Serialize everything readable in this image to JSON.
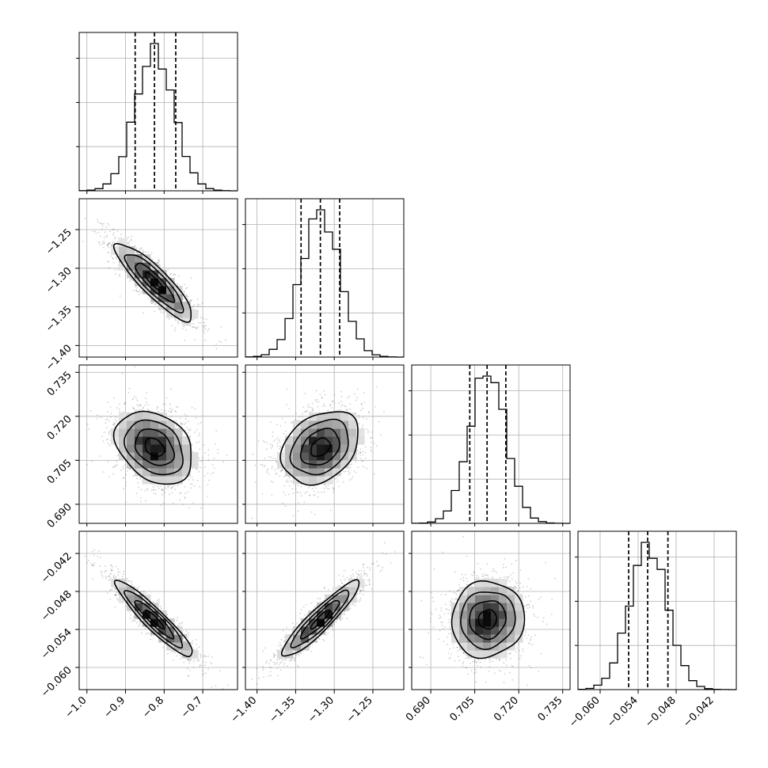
{
  "chart_data": {
    "type": "scatter",
    "figure": "corner",
    "grid": true,
    "parameters": [
      {
        "range": [
          -1.02,
          -0.61
        ],
        "ticks": [
          -1.0,
          -0.9,
          -0.8,
          -0.7
        ],
        "tick_labels": [
          "−1.0",
          "−0.9",
          "−0.8",
          "−0.7"
        ],
        "median": -0.825,
        "q16": -0.875,
        "q84": -0.77,
        "mean": -0.825,
        "sd": 0.05,
        "hist_ticks": [
          0.3,
          0.6,
          0.9
        ]
      },
      {
        "range": [
          -1.415,
          -1.21
        ],
        "ticks": [
          -1.4,
          -1.35,
          -1.3,
          -1.25
        ],
        "tick_labels": [
          "−1.40",
          "−1.35",
          "−1.30",
          "−1.25"
        ],
        "median": -1.318,
        "q16": -1.343,
        "q84": -1.293,
        "mean": -1.318,
        "sd": 0.025,
        "hist_ticks": [
          0.3,
          0.6,
          0.9
        ]
      },
      {
        "range": [
          0.6835,
          0.7375
        ],
        "ticks": [
          0.69,
          0.705,
          0.72,
          0.735
        ],
        "tick_labels": [
          "0.690",
          "0.705",
          "0.720",
          "0.735"
        ],
        "median": 0.7092,
        "q16": 0.7033,
        "q84": 0.7156,
        "mean": 0.7094,
        "sd": 0.0062,
        "hist_ticks": [
          0.3,
          0.6,
          0.9
        ]
      },
      {
        "range": [
          -0.0635,
          -0.0385
        ],
        "ticks": [
          -0.06,
          -0.054,
          -0.048,
          -0.042
        ],
        "tick_labels": [
          "−0.060",
          "−0.054",
          "−0.048",
          "−0.042"
        ],
        "median": -0.0525,
        "q16": -0.0555,
        "q84": -0.0493,
        "mean": -0.0524,
        "sd": 0.003,
        "hist_ticks": [
          0.3,
          0.6,
          0.9
        ]
      }
    ],
    "correlations": {
      "1-0": -0.88,
      "2-0": -0.3,
      "2-1": 0.3,
      "3-0": -0.93,
      "3-1": 0.92,
      "3-2": 0.05
    },
    "contour_levels": [
      0.5,
      1.0,
      1.5,
      2.0
    ]
  }
}
